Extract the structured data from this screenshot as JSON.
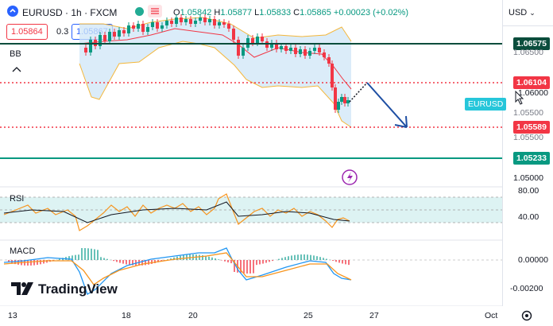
{
  "header": {
    "symbol": "EURUSD",
    "interval": "1h",
    "exchange": "FXCM",
    "separator": "·",
    "ohlc": {
      "open_label": "O",
      "open": "1.05842",
      "high_label": "H",
      "high": "1.05877",
      "low_label": "L",
      "low": "1.05833",
      "close_label": "C",
      "close": "1.05865",
      "change": "+0.00023 (+0.02%)"
    },
    "bid": "1.05864",
    "spread": "0.3",
    "ask": "1.05867",
    "currency": "USD"
  },
  "indicators": {
    "bb_label": "BB",
    "rsi_label": "RSI",
    "macd_label": "MACD"
  },
  "price_levels": {
    "level_1": "1.06575",
    "level_2": "1.06104",
    "level_3": "1.05589",
    "level_4": "1.05233",
    "symbol_tag": "EURUSD"
  },
  "price_axis": [
    "1.06500",
    "1.06000",
    "1.05500",
    "1.05000"
  ],
  "rsi_axis": [
    "80.00",
    "40.00"
  ],
  "macd_axis": [
    "0.00000",
    "-0.00200"
  ],
  "time_axis": [
    "13",
    "18",
    "20",
    "25",
    "27",
    "Oct"
  ],
  "brand": "TradingView",
  "colors": {
    "dark_green": "#0b4d3c",
    "teal": "#089981",
    "red": "#f23645",
    "blue_arrow": "#1e4fa3",
    "bb_fill": "#cfe6f7",
    "bb_band": "#f4b73b"
  }
}
